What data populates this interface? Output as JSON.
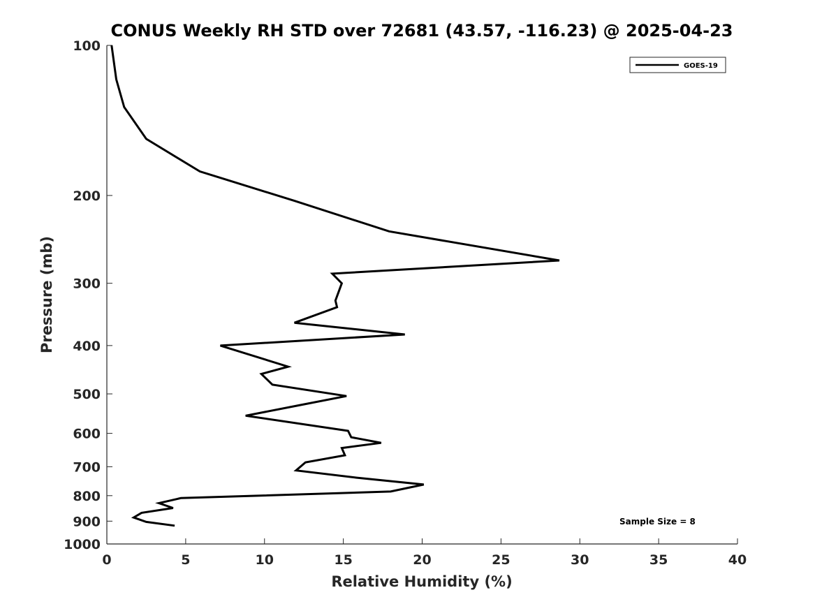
{
  "chart_data": {
    "type": "line",
    "title": "CONUS Weekly RH STD over 72681 (43.57, -116.23) @ 2025-04-23",
    "xlabel": "Relative Humidity (%)",
    "ylabel": "Pressure (mb)",
    "xlim": [
      0,
      40
    ],
    "ylim": [
      100,
      1000
    ],
    "y_scale": "log",
    "y_reversed": true,
    "xticks": [
      0,
      5,
      10,
      15,
      20,
      25,
      30,
      35,
      40
    ],
    "yticks": [
      100,
      200,
      300,
      400,
      500,
      600,
      700,
      800,
      900,
      1000
    ],
    "grid": false,
    "legend_position": "top-right",
    "series": [
      {
        "name": "GOES-19",
        "color": "#000000",
        "x": [
          0.3,
          0.6,
          1.1,
          2.5,
          5.9,
          11.9,
          17.9,
          28.7,
          14.3,
          14.9,
          14.5,
          14.6,
          11.9,
          18.9,
          7.2,
          11.5,
          9.8,
          10.5,
          15.2,
          12.2,
          8.8,
          15.3,
          15.5,
          17.4,
          14.9,
          15.1,
          12.6,
          12.0,
          15.8,
          20.1,
          18.0,
          4.7,
          3.3,
          4.2,
          2.2,
          1.7,
          2.5,
          4.3
        ],
        "y": [
          100,
          117,
          133,
          154,
          179,
          205,
          236,
          270,
          287,
          300,
          325,
          335,
          360,
          380,
          400,
          441,
          456,
          479,
          505,
          527,
          553,
          593,
          611,
          627,
          642,
          664,
          686,
          712,
          736,
          760,
          785,
          809,
          828,
          847,
          866,
          885,
          903,
          919
        ]
      }
    ],
    "annotations": [
      "Sample Size = 8"
    ]
  }
}
